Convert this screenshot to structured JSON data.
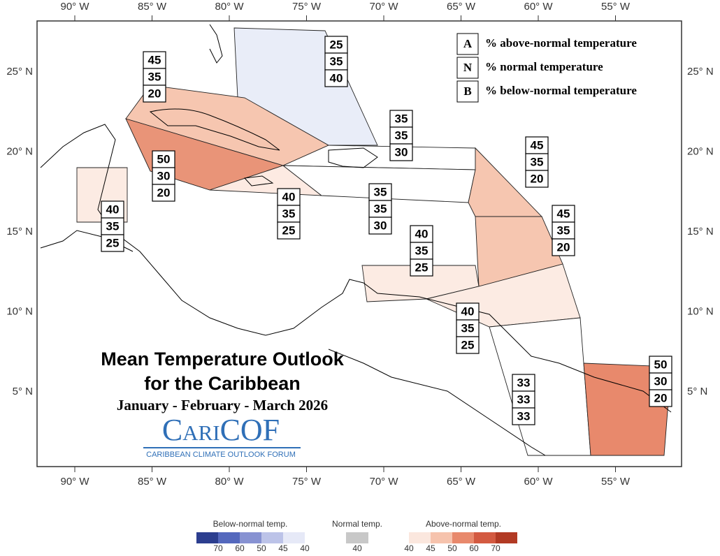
{
  "map": {
    "title": "Mean Temperature Outlook",
    "title_line2": "for the Caribbean",
    "period": "January - February - March 2026",
    "logo": "CariCOF",
    "logo_subtitle": "CARIBBEAN CLIMATE OUTLOOK FORUM",
    "key": [
      {
        "letter": "A",
        "text": "% above-normal temperature"
      },
      {
        "letter": "N",
        "text": "% normal temperature"
      },
      {
        "letter": "B",
        "text": "% below-normal temperature"
      }
    ],
    "longitude_labels": [
      "90° W",
      "85° W",
      "80° W",
      "75° W",
      "70° W",
      "65° W",
      "60° W",
      "55° W"
    ],
    "latitude_labels": [
      "25° N",
      "20° N",
      "15° N",
      "10° N",
      "5° N"
    ],
    "regions": [
      {
        "values": [
          "25",
          "35",
          "40"
        ]
      },
      {
        "values": [
          "45",
          "35",
          "20"
        ]
      },
      {
        "values": [
          "35",
          "35",
          "30"
        ]
      },
      {
        "values": [
          "45",
          "35",
          "20"
        ]
      },
      {
        "values": [
          "50",
          "30",
          "20"
        ]
      },
      {
        "values": [
          "40",
          "35",
          "25"
        ]
      },
      {
        "values": [
          "40",
          "35",
          "25"
        ]
      },
      {
        "values": [
          "35",
          "35",
          "30"
        ]
      },
      {
        "values": [
          "45",
          "35",
          "20"
        ]
      },
      {
        "values": [
          "40",
          "35",
          "25"
        ]
      },
      {
        "values": [
          "40",
          "35",
          "25"
        ]
      },
      {
        "values": [
          "33",
          "33",
          "33"
        ]
      },
      {
        "values": [
          "50",
          "30",
          "20"
        ]
      }
    ],
    "color_scale": {
      "below_title": "Below-normal temp.",
      "below_ticks": [
        "70",
        "60",
        "50",
        "45",
        "40"
      ],
      "normal_title": "Normal temp.",
      "normal_ticks": [
        "40"
      ],
      "above_title": "Above-normal temp.",
      "above_ticks": [
        "40",
        "45",
        "50",
        "60",
        "70"
      ]
    }
  }
}
